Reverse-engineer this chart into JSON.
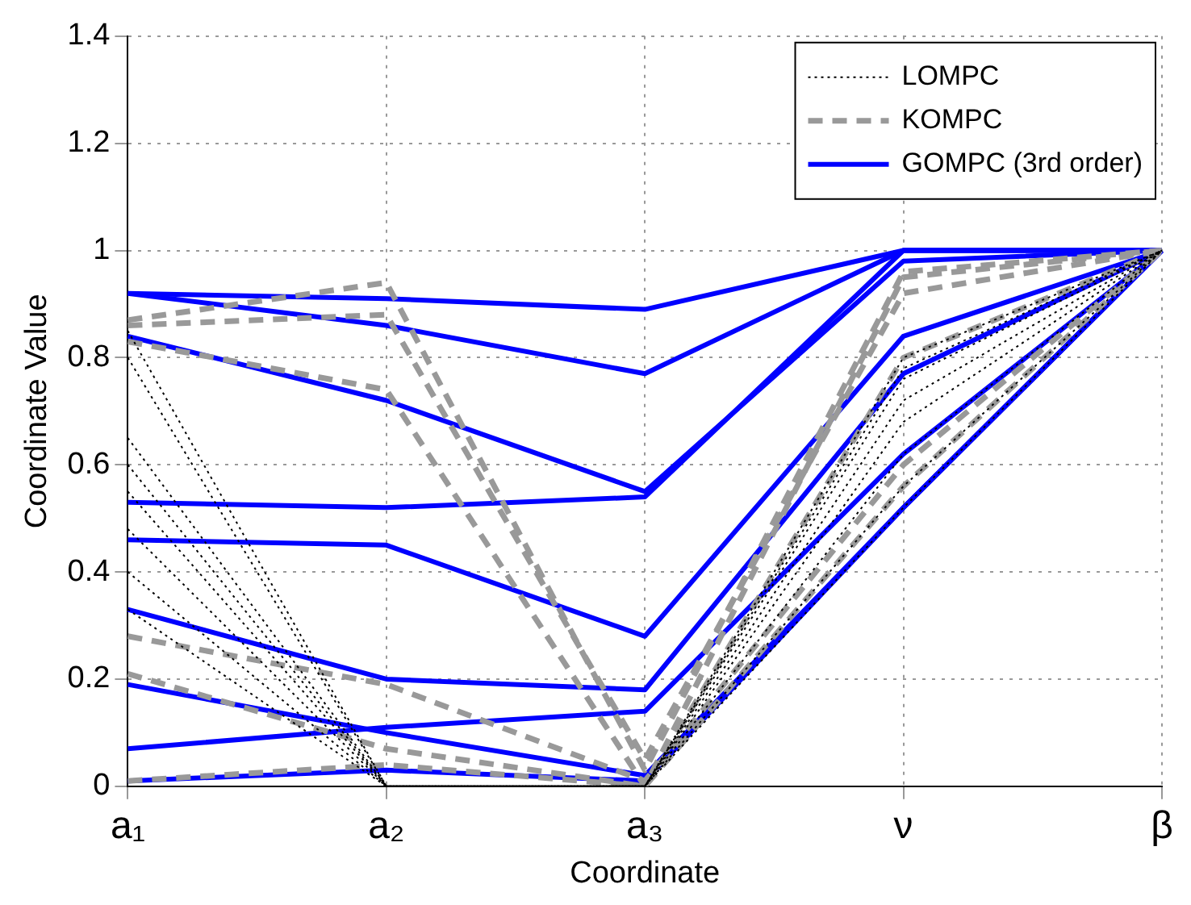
{
  "chart_data": {
    "type": "line",
    "xlabel": "Coordinate",
    "ylabel": "Coordinate Value",
    "categories": [
      "a₁",
      "a₂",
      "a₃",
      "ν",
      "β"
    ],
    "ylim": [
      0,
      1.4
    ],
    "yticks": [
      0,
      0.2,
      0.4,
      0.6,
      0.8,
      1,
      1.2,
      1.4
    ],
    "grid": true,
    "legend": "top right",
    "marker": "none",
    "series": [
      {
        "name": "LOMPC",
        "color": "#000000",
        "line_style": "dotted",
        "values": [
          0.85,
          0,
          0,
          0.8,
          1
        ]
      },
      {
        "color": "#000000",
        "line_style": "dotted",
        "values": [
          0.8,
          0,
          0,
          0.78,
          1
        ]
      },
      {
        "color": "#000000",
        "line_style": "dotted",
        "values": [
          0.65,
          0,
          0,
          0.76,
          1
        ]
      },
      {
        "color": "#000000",
        "line_style": "dotted",
        "values": [
          0.6,
          0,
          0,
          0.72,
          1
        ]
      },
      {
        "color": "#000000",
        "line_style": "dotted",
        "values": [
          0.55,
          0,
          0,
          0.68,
          1
        ]
      },
      {
        "color": "#000000",
        "line_style": "dotted",
        "values": [
          0.48,
          0,
          0,
          0.62,
          1
        ]
      },
      {
        "color": "#000000",
        "line_style": "dotted",
        "values": [
          0.4,
          0,
          0,
          0.56,
          1
        ]
      },
      {
        "color": "#000000",
        "line_style": "dotted",
        "values": [
          0.33,
          0,
          0,
          0.52,
          1
        ]
      },
      {
        "name": "KOMPC",
        "color": "#999999",
        "line_style": "dashed",
        "values": [
          0.87,
          0.94,
          0.03,
          0.96,
          1
        ]
      },
      {
        "color": "#999999",
        "line_style": "dashed",
        "values": [
          0.86,
          0.88,
          0.05,
          0.92,
          1
        ]
      },
      {
        "color": "#999999",
        "line_style": "dashed",
        "values": [
          0.83,
          0.74,
          0,
          0.8,
          1
        ]
      },
      {
        "color": "#999999",
        "line_style": "dashed",
        "values": [
          0.28,
          0.19,
          0.01,
          0.6,
          1
        ]
      },
      {
        "color": "#999999",
        "line_style": "dashed",
        "values": [
          0.21,
          0.07,
          0,
          0.56,
          1
        ]
      },
      {
        "color": "#999999",
        "line_style": "dashed",
        "values": [
          0.01,
          0.04,
          0,
          0.95,
          1
        ]
      },
      {
        "name": "GOMPC (3rd order)",
        "color": "#0000ff",
        "line_style": "solid",
        "values": [
          0.92,
          0.91,
          0.89,
          1,
          1
        ]
      },
      {
        "color": "#0000ff",
        "line_style": "solid",
        "values": [
          0.92,
          0.86,
          0.77,
          1,
          1
        ]
      },
      {
        "color": "#0000ff",
        "line_style": "solid",
        "values": [
          0.84,
          0.72,
          0.55,
          0.98,
          1
        ]
      },
      {
        "color": "#0000ff",
        "line_style": "solid",
        "values": [
          0.53,
          0.52,
          0.54,
          1,
          1
        ]
      },
      {
        "color": "#0000ff",
        "line_style": "solid",
        "values": [
          0.46,
          0.45,
          0.28,
          0.84,
          1
        ]
      },
      {
        "color": "#0000ff",
        "line_style": "solid",
        "values": [
          0.33,
          0.2,
          0.18,
          0.77,
          1
        ]
      },
      {
        "color": "#0000ff",
        "line_style": "solid",
        "values": [
          0.07,
          0.11,
          0.14,
          0.62,
          1
        ]
      },
      {
        "color": "#0000ff",
        "line_style": "solid",
        "values": [
          0.19,
          0.1,
          0.02,
          0.52,
          1
        ]
      },
      {
        "color": "#0000ff",
        "line_style": "solid",
        "values": [
          0.01,
          0.03,
          0.01,
          0.52,
          1
        ]
      }
    ]
  }
}
